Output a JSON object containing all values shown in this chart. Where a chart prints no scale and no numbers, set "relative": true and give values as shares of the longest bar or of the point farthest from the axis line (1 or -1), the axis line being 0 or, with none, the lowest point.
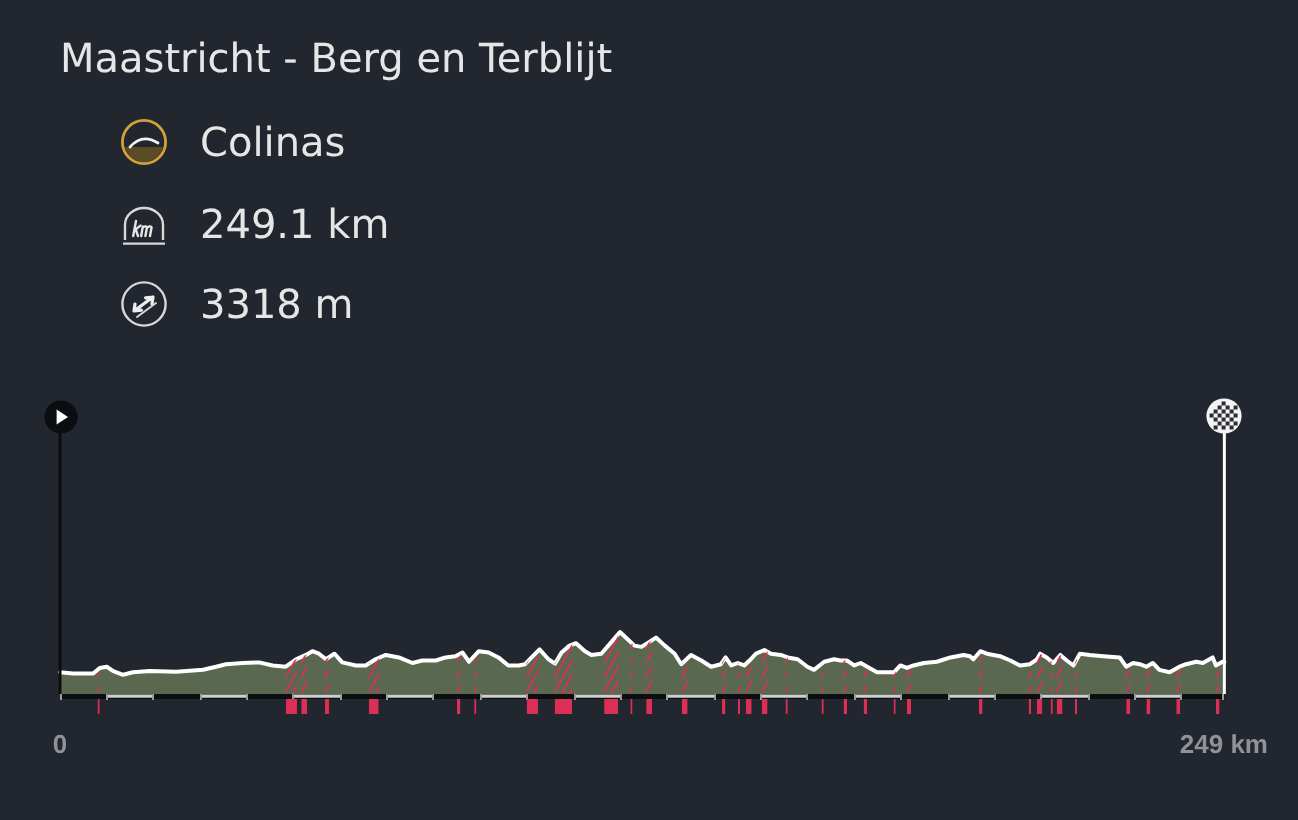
{
  "chart_data": {
    "type": "area",
    "title": "Maastricht - Berg en Terblijt",
    "annotations": [
      "Colinas",
      "249.1 km",
      "3318 m"
    ],
    "relative": true,
    "color": "#5a684f",
    "x": [
      0,
      2.8,
      7.1,
      8.5,
      10.0,
      11.4,
      13.5,
      15.6,
      19.2,
      24.9,
      30.6,
      33.4,
      35.5,
      39.1,
      42.6,
      45.5,
      48.3,
      50.5,
      52.6,
      54.0,
      55.4,
      56.9,
      58.7,
      60.4,
      63.3,
      65.4,
      67.5,
      69.7,
      72.5,
      75.4,
      77.5,
      80.4,
      82.5,
      84.6,
      86.1,
      87.5,
      89.6,
      91.7,
      93.8,
      95.9,
      98.1,
      99.5,
      100.9,
      102.6,
      104.5,
      105.9,
      107.3,
      109.0,
      110.4,
      112.3,
      113.7,
      115.8,
      118.0,
      119.8,
      121.5,
      122.9,
      124.4,
      126.1,
      127.5,
      129.4,
      131.5,
      132.9,
      135.0,
      137.2,
      139.3,
      141.4,
      142.4,
      143.6,
      145.0,
      146.4,
      147.5,
      148.9,
      150.7,
      152.1,
      154.2,
      155.7,
      157.8,
      159.9,
      161.3,
      163.5,
      165.6,
      167.0,
      168.4,
      169.9,
      171.3,
      172.7,
      174.8,
      178.4,
      179.8,
      181.2,
      182.6,
      184.8,
      187.6,
      190.5,
      193.3,
      194.7,
      195.4,
      196.9,
      198.3,
      201.1,
      203.3,
      205.4,
      207.5,
      209.0,
      209.7,
      211.1,
      212.5,
      214.0,
      215.4,
      216.8,
      218.2,
      220.3,
      223.2,
      226.7,
      228.1,
      229.6,
      231.0,
      232.4,
      233.8,
      235.2,
      237.4,
      239.5,
      240.9,
      243.1,
      244.5,
      246.6,
      247.3,
      248.7,
      249.1
    ],
    "values": [
      0.35,
      0.33,
      0.33,
      0.42,
      0.44,
      0.37,
      0.31,
      0.35,
      0.37,
      0.36,
      0.39,
      0.44,
      0.48,
      0.5,
      0.51,
      0.46,
      0.44,
      0.56,
      0.63,
      0.69,
      0.65,
      0.56,
      0.65,
      0.51,
      0.46,
      0.46,
      0.56,
      0.63,
      0.59,
      0.5,
      0.54,
      0.54,
      0.59,
      0.61,
      0.67,
      0.52,
      0.69,
      0.67,
      0.59,
      0.46,
      0.46,
      0.48,
      0.59,
      0.72,
      0.56,
      0.49,
      0.67,
      0.78,
      0.82,
      0.69,
      0.63,
      0.65,
      0.84,
      1,
      0.88,
      0.78,
      0.76,
      0.84,
      0.91,
      0.78,
      0.65,
      0.48,
      0.63,
      0.54,
      0.44,
      0.48,
      0.59,
      0.46,
      0.5,
      0.46,
      0.54,
      0.65,
      0.71,
      0.65,
      0.63,
      0.59,
      0.56,
      0.44,
      0.39,
      0.52,
      0.56,
      0.54,
      0.54,
      0.46,
      0.5,
      0.44,
      0.35,
      0.35,
      0.46,
      0.42,
      0.46,
      0.5,
      0.52,
      0.59,
      0.63,
      0.61,
      0.56,
      0.69,
      0.65,
      0.61,
      0.54,
      0.46,
      0.48,
      0.56,
      0.65,
      0.59,
      0.5,
      0.63,
      0.54,
      0.46,
      0.65,
      0.63,
      0.61,
      0.59,
      0.44,
      0.5,
      0.48,
      0.44,
      0.5,
      0.39,
      0.35,
      0.44,
      0.48,
      0.52,
      0.5,
      0.59,
      0.46,
      0.52,
      0.52
    ],
    "xlim": [
      0,
      249.1
    ],
    "xticks": [
      0,
      {
        "value": 10,
        "label": null
      },
      {
        "value": 20,
        "label": null
      },
      {
        "value": 30,
        "label": null
      },
      {
        "value": 40,
        "label": null
      },
      {
        "value": 50,
        "label": null
      },
      {
        "value": 60,
        "label": null
      },
      {
        "value": 70,
        "label": null
      },
      {
        "value": 80,
        "label": null
      },
      {
        "value": 90,
        "label": null
      },
      {
        "value": 100,
        "label": null
      },
      {
        "value": 110,
        "label": null
      },
      {
        "value": 120,
        "label": null
      },
      {
        "value": 130,
        "label": null
      },
      {
        "value": 140,
        "label": null
      },
      {
        "value": 150,
        "label": null
      },
      {
        "value": 160,
        "label": null
      },
      {
        "value": 170,
        "label": null
      },
      {
        "value": 180,
        "label": null
      },
      {
        "value": 190,
        "label": null
      },
      {
        "value": 200,
        "label": null
      },
      {
        "value": 210,
        "label": null
      },
      {
        "value": 220,
        "label": null
      },
      {
        "value": 230,
        "label": null
      },
      {
        "value": 240,
        "label": null
      },
      {
        "value": 249,
        "label": "249 km"
      }
    ],
    "ref_lines": [
      {
        "axis": "x",
        "value": 0,
        "color": "#0b0d10"
      },
      {
        "axis": "x",
        "value": 249.1,
        "color": "#ffffff"
      }
    ],
    "bands": [
      {
        "axis": "x",
        "from": 8.0,
        "to": 8.4,
        "color": "#dc2f55"
      },
      {
        "axis": "x",
        "from": 48.3,
        "to": 50.7,
        "color": "#dc2f55"
      },
      {
        "axis": "x",
        "from": 51.6,
        "to": 52.9,
        "color": "#dc2f55"
      },
      {
        "axis": "x",
        "from": 56.7,
        "to": 57.6,
        "color": "#dc2f55"
      },
      {
        "axis": "x",
        "from": 66.1,
        "to": 68.2,
        "color": "#dc2f55"
      },
      {
        "axis": "x",
        "from": 84.9,
        "to": 85.7,
        "color": "#dc2f55"
      },
      {
        "axis": "x",
        "from": 88.6,
        "to": 89.0,
        "color": "#dc2f55"
      },
      {
        "axis": "x",
        "from": 99.8,
        "to": 102.3,
        "color": "#dc2f55"
      },
      {
        "axis": "x",
        "from": 105.8,
        "to": 109.6,
        "color": "#dc2f55"
      },
      {
        "axis": "x",
        "from": 116.4,
        "to": 119.4,
        "color": "#dc2f55"
      },
      {
        "axis": "x",
        "from": 122.0,
        "to": 122.5,
        "color": "#dc2f55"
      },
      {
        "axis": "x",
        "from": 125.4,
        "to": 126.7,
        "color": "#dc2f55"
      },
      {
        "axis": "x",
        "from": 133.0,
        "to": 134.3,
        "color": "#dc2f55"
      },
      {
        "axis": "x",
        "from": 141.6,
        "to": 142.4,
        "color": "#dc2f55"
      },
      {
        "axis": "x",
        "from": 145.0,
        "to": 145.4,
        "color": "#dc2f55"
      },
      {
        "axis": "x",
        "from": 146.7,
        "to": 148.0,
        "color": "#dc2f55"
      },
      {
        "axis": "x",
        "from": 150.1,
        "to": 151.4,
        "color": "#dc2f55"
      },
      {
        "axis": "x",
        "from": 155.2,
        "to": 155.7,
        "color": "#dc2f55"
      },
      {
        "axis": "x",
        "from": 162.9,
        "to": 163.3,
        "color": "#dc2f55"
      },
      {
        "axis": "x",
        "from": 167.6,
        "to": 168.4,
        "color": "#dc2f55"
      },
      {
        "axis": "x",
        "from": 171.9,
        "to": 172.7,
        "color": "#dc2f55"
      },
      {
        "axis": "x",
        "from": 178.3,
        "to": 178.7,
        "color": "#dc2f55"
      },
      {
        "axis": "x",
        "from": 181.2,
        "to": 182.1,
        "color": "#dc2f55"
      },
      {
        "axis": "x",
        "from": 196.6,
        "to": 197.4,
        "color": "#dc2f55"
      },
      {
        "axis": "x",
        "from": 207.2,
        "to": 207.8,
        "color": "#dc2f55"
      },
      {
        "axis": "x",
        "from": 209.0,
        "to": 210.2,
        "color": "#dc2f55"
      },
      {
        "axis": "x",
        "from": 211.9,
        "to": 212.4,
        "color": "#dc2f55"
      },
      {
        "axis": "x",
        "from": 213.2,
        "to": 214.5,
        "color": "#dc2f55"
      },
      {
        "axis": "x",
        "from": 217.1,
        "to": 217.5,
        "color": "#dc2f55"
      },
      {
        "axis": "x",
        "from": 228.1,
        "to": 229.0,
        "color": "#dc2f55"
      },
      {
        "axis": "x",
        "from": 232.4,
        "to": 233.3,
        "color": "#dc2f55"
      },
      {
        "axis": "x",
        "from": 238.8,
        "to": 239.7,
        "color": "#dc2f55"
      },
      {
        "axis": "x",
        "from": 247.3,
        "to": 248.1,
        "color": "#dc2f55"
      }
    ]
  }
}
